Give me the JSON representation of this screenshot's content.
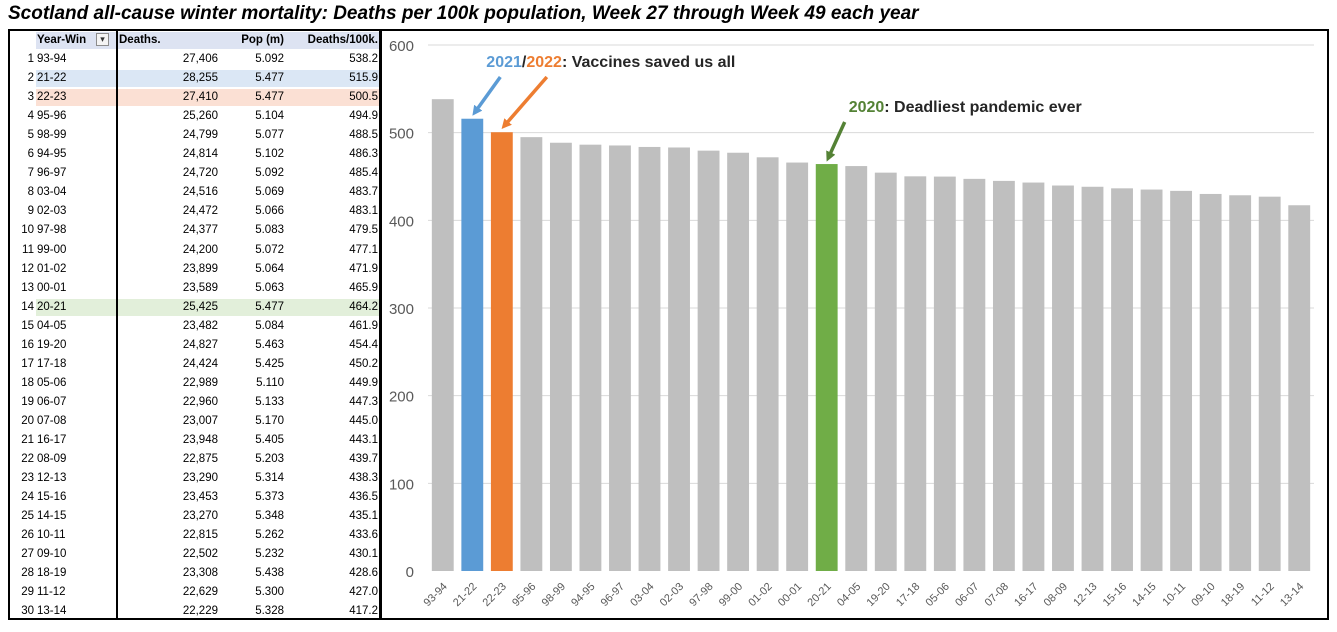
{
  "title": "Scotland all-cause winter mortality: Deaths per 100k population, Week 27 through Week 49 each year",
  "colors": {
    "header_band": "#dde3f2",
    "highlight_2122": "#dbe7f5",
    "highlight_2223": "#fbe0d4",
    "highlight_2021": "#e2efda",
    "bar_default": "#bfbfbf",
    "bar_2122": "#5b9bd5",
    "bar_2223": "#ed7d31",
    "bar_2021": "#70ad47",
    "arrow_blue": "#5b9bd5",
    "arrow_orange": "#ed7d31",
    "arrow_green": "#548235",
    "text_green": "#548235"
  },
  "table": {
    "headers": {
      "year": "Year-Win",
      "deaths": "Deaths.",
      "pop": "Pop (m)",
      "rate": "Deaths/100k."
    },
    "filter_icon": "filter-sort-icon",
    "rows": [
      {
        "n": "1",
        "year": "93-94",
        "deaths": "27,406",
        "pop": "5.092",
        "rate": "538.2"
      },
      {
        "n": "2",
        "year": "21-22",
        "deaths": "28,255",
        "pop": "5.477",
        "rate": "515.9",
        "hl": "highlight_2122"
      },
      {
        "n": "3",
        "year": "22-23",
        "deaths": "27,410",
        "pop": "5.477",
        "rate": "500.5",
        "hl": "highlight_2223"
      },
      {
        "n": "4",
        "year": "95-96",
        "deaths": "25,260",
        "pop": "5.104",
        "rate": "494.9"
      },
      {
        "n": "5",
        "year": "98-99",
        "deaths": "24,799",
        "pop": "5.077",
        "rate": "488.5"
      },
      {
        "n": "6",
        "year": "94-95",
        "deaths": "24,814",
        "pop": "5.102",
        "rate": "486.3"
      },
      {
        "n": "7",
        "year": "96-97",
        "deaths": "24,720",
        "pop": "5.092",
        "rate": "485.4"
      },
      {
        "n": "8",
        "year": "03-04",
        "deaths": "24,516",
        "pop": "5.069",
        "rate": "483.7"
      },
      {
        "n": "9",
        "year": "02-03",
        "deaths": "24,472",
        "pop": "5.066",
        "rate": "483.1"
      },
      {
        "n": "10",
        "year": "97-98",
        "deaths": "24,377",
        "pop": "5.083",
        "rate": "479.5"
      },
      {
        "n": "11",
        "year": "99-00",
        "deaths": "24,200",
        "pop": "5.072",
        "rate": "477.1"
      },
      {
        "n": "12",
        "year": "01-02",
        "deaths": "23,899",
        "pop": "5.064",
        "rate": "471.9"
      },
      {
        "n": "13",
        "year": "00-01",
        "deaths": "23,589",
        "pop": "5.063",
        "rate": "465.9"
      },
      {
        "n": "14",
        "year": "20-21",
        "deaths": "25,425",
        "pop": "5.477",
        "rate": "464.2",
        "hl": "highlight_2021"
      },
      {
        "n": "15",
        "year": "04-05",
        "deaths": "23,482",
        "pop": "5.084",
        "rate": "461.9"
      },
      {
        "n": "16",
        "year": "19-20",
        "deaths": "24,827",
        "pop": "5.463",
        "rate": "454.4"
      },
      {
        "n": "17",
        "year": "17-18",
        "deaths": "24,424",
        "pop": "5.425",
        "rate": "450.2"
      },
      {
        "n": "18",
        "year": "05-06",
        "deaths": "22,989",
        "pop": "5.110",
        "rate": "449.9"
      },
      {
        "n": "19",
        "year": "06-07",
        "deaths": "22,960",
        "pop": "5.133",
        "rate": "447.3"
      },
      {
        "n": "20",
        "year": "07-08",
        "deaths": "23,007",
        "pop": "5.170",
        "rate": "445.0"
      },
      {
        "n": "21",
        "year": "16-17",
        "deaths": "23,948",
        "pop": "5.405",
        "rate": "443.1"
      },
      {
        "n": "22",
        "year": "08-09",
        "deaths": "22,875",
        "pop": "5.203",
        "rate": "439.7"
      },
      {
        "n": "23",
        "year": "12-13",
        "deaths": "23,290",
        "pop": "5.314",
        "rate": "438.3"
      },
      {
        "n": "24",
        "year": "15-16",
        "deaths": "23,453",
        "pop": "5.373",
        "rate": "436.5"
      },
      {
        "n": "25",
        "year": "14-15",
        "deaths": "23,270",
        "pop": "5.348",
        "rate": "435.1"
      },
      {
        "n": "26",
        "year": "10-11",
        "deaths": "22,815",
        "pop": "5.262",
        "rate": "433.6"
      },
      {
        "n": "27",
        "year": "09-10",
        "deaths": "22,502",
        "pop": "5.232",
        "rate": "430.1"
      },
      {
        "n": "28",
        "year": "18-19",
        "deaths": "23,308",
        "pop": "5.438",
        "rate": "428.6"
      },
      {
        "n": "29",
        "year": "11-12",
        "deaths": "22,629",
        "pop": "5.300",
        "rate": "427.0"
      },
      {
        "n": "30",
        "year": "13-14",
        "deaths": "22,229",
        "pop": "5.328",
        "rate": "417.2"
      }
    ]
  },
  "chart_data": {
    "type": "bar",
    "title": "",
    "xlabel": "",
    "ylabel": "",
    "ylim": [
      0,
      600
    ],
    "yticks": [
      0,
      100,
      200,
      300,
      400,
      500,
      600
    ],
    "grid": true,
    "categories": [
      "93-94",
      "21-22",
      "22-23",
      "95-96",
      "98-99",
      "94-95",
      "96-97",
      "03-04",
      "02-03",
      "97-98",
      "99-00",
      "01-02",
      "00-01",
      "20-21",
      "04-05",
      "19-20",
      "17-18",
      "05-06",
      "06-07",
      "07-08",
      "16-17",
      "08-09",
      "12-13",
      "15-16",
      "14-15",
      "10-11",
      "09-10",
      "18-19",
      "11-12",
      "13-14"
    ],
    "values": [
      538.2,
      515.9,
      500.5,
      494.9,
      488.5,
      486.3,
      485.4,
      483.7,
      483.1,
      479.5,
      477.1,
      471.9,
      465.9,
      464.2,
      461.9,
      454.4,
      450.2,
      449.9,
      447.3,
      445.0,
      443.1,
      439.7,
      438.3,
      436.5,
      435.1,
      433.6,
      430.1,
      428.6,
      427.0,
      417.2
    ],
    "bar_colors": {
      "21-22": "bar_2122",
      "22-23": "bar_2223",
      "20-21": "bar_2021"
    },
    "annotations": [
      {
        "parts": [
          {
            "text": "2021",
            "color": "bar_2122"
          },
          {
            "text": "/",
            "color": ""
          },
          {
            "text": "2022",
            "color": "bar_2223"
          },
          {
            "text": ": Vaccines saved us all",
            "color": ""
          }
        ]
      },
      {
        "parts": [
          {
            "text": "2020",
            "color": "text_green"
          },
          {
            "text": ": Deadliest pandemic ever",
            "color": ""
          }
        ]
      }
    ]
  }
}
